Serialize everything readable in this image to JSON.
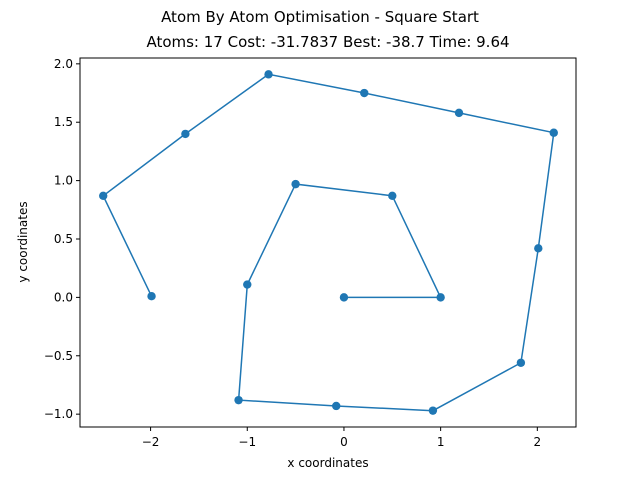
{
  "chart_data": {
    "type": "line",
    "title": "Atom By Atom Optimisation - Square Start",
    "subtitle": "Atoms: 17 Cost: -31.7837 Best: -38.7 Time: 9.64",
    "xlabel": "x coordinates",
    "ylabel": "y coordinates",
    "xlim": [
      -2.73,
      2.4
    ],
    "ylim": [
      -1.11,
      2.05
    ],
    "xticks": [
      -2,
      -1,
      0,
      1,
      2
    ],
    "yticks": [
      -1.0,
      -0.5,
      0.0,
      0.5,
      1.0,
      1.5,
      2.0
    ],
    "xtick_labels": [
      "−2",
      "−1",
      "0",
      "1",
      "2"
    ],
    "ytick_labels": [
      "−1.0",
      "−0.5",
      "0.0",
      "0.5",
      "1.0",
      "1.5",
      "2.0"
    ],
    "grid": false,
    "line_color": "#1f77b4",
    "series": [
      {
        "marker": "circle",
        "x": [
          0.0,
          1.0,
          0.5,
          -0.5,
          -1.0,
          -1.09,
          -0.08,
          0.92,
          1.83,
          2.01,
          2.17,
          1.19,
          0.21,
          -0.78,
          -1.64,
          -2.49,
          -1.99
        ],
        "y": [
          0.0,
          0.0,
          0.87,
          0.97,
          0.11,
          -0.88,
          -0.93,
          -0.97,
          -0.56,
          0.42,
          1.41,
          1.58,
          1.75,
          1.91,
          1.4,
          0.87,
          0.01
        ]
      }
    ]
  }
}
